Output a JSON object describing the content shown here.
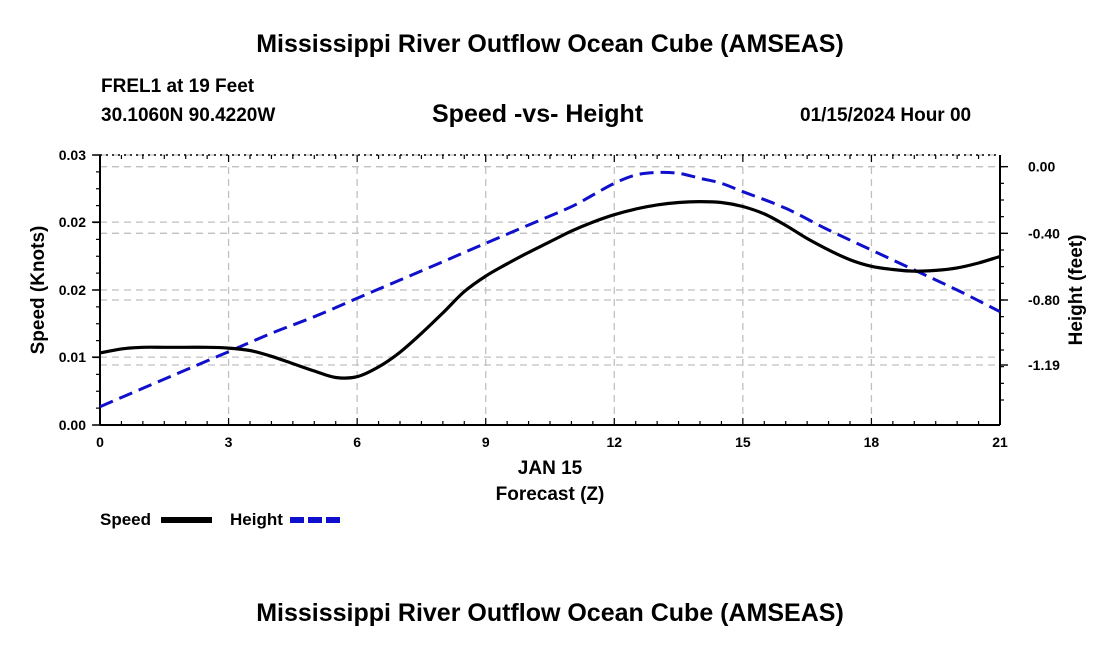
{
  "header": {
    "main_title": "Mississippi River Outflow Ocean Cube (AMSEAS)",
    "station": "FREL1 at 19 Feet",
    "coordinates": "30.1060N  90.4220W",
    "subtitle": "Speed -vs- Height",
    "datetime": "01/15/2024 Hour 00"
  },
  "footer": {
    "repeat_title": "Mississippi River Outflow Ocean Cube (AMSEAS)"
  },
  "colors": {
    "speed": "#000000",
    "height": "#1010cc",
    "grid": "#c0c0c0"
  },
  "chart_data": {
    "type": "line",
    "title": "Speed -vs- Height",
    "xlabel": "Forecast (Z)",
    "x_date_label": "JAN 15",
    "ylabel_left": "Speed (Knots)",
    "ylabel_right": "Height (feet)",
    "xlim": [
      0,
      21
    ],
    "ylim_left": [
      0,
      0.033
    ],
    "ylim_right": [
      -1.55,
      0.07
    ],
    "x_ticks": [
      0,
      3,
      6,
      9,
      12,
      15,
      18,
      21
    ],
    "x_tick_labels": [
      "0",
      "3",
      "6",
      "9",
      "12",
      "15",
      "18",
      "21"
    ],
    "left_ticks": [
      0,
      0.01,
      0.02,
      0.03
    ],
    "left_tick_labels": [
      "0.00",
      "0.01",
      "0.02",
      "0.02",
      "0.03"
    ],
    "left_tick_values": [
      0,
      0.0083,
      0.0165,
      0.0248,
      0.033
    ],
    "right_tick_values": [
      0,
      -0.4,
      -0.8,
      -1.19
    ],
    "right_tick_labels": [
      "0.00",
      "-0.40",
      "-0.80",
      "-1.19"
    ],
    "grid": true,
    "legend": "bottom-left",
    "series": [
      {
        "name": "Speed",
        "axis": "left",
        "style": "solid",
        "x": [
          0,
          0.5,
          1,
          1.5,
          2,
          2.5,
          3,
          3.5,
          4,
          4.5,
          5,
          5.5,
          6,
          6.5,
          7,
          7.5,
          8,
          8.5,
          9,
          9.5,
          10,
          10.5,
          11,
          11.5,
          12,
          12.5,
          13,
          13.5,
          14,
          14.5,
          15,
          15.5,
          16,
          16.5,
          17,
          17.5,
          18,
          18.5,
          19,
          19.5,
          20,
          20.5,
          21
        ],
        "values": [
          0.0088,
          0.0093,
          0.0095,
          0.0095,
          0.0095,
          0.0095,
          0.0094,
          0.0091,
          0.0084,
          0.0075,
          0.0066,
          0.0058,
          0.0059,
          0.0071,
          0.0089,
          0.0112,
          0.0137,
          0.0163,
          0.0182,
          0.0197,
          0.0211,
          0.0224,
          0.0237,
          0.0248,
          0.0257,
          0.0264,
          0.0269,
          0.0272,
          0.0273,
          0.0272,
          0.0267,
          0.0258,
          0.0244,
          0.0228,
          0.0214,
          0.0202,
          0.0194,
          0.019,
          0.0188,
          0.0189,
          0.0192,
          0.0198,
          0.0206
        ]
      },
      {
        "name": "Height",
        "axis": "right",
        "style": "dashed",
        "x": [
          0,
          1,
          2,
          3,
          4,
          5,
          6,
          7,
          8,
          9,
          10,
          11,
          11.5,
          12,
          12.5,
          13,
          13.5,
          14,
          14.5,
          15,
          16,
          17,
          18,
          19,
          20,
          21
        ],
        "values": [
          -1.44,
          -1.33,
          -1.22,
          -1.11,
          -1.0,
          -0.9,
          -0.79,
          -0.68,
          -0.57,
          -0.46,
          -0.35,
          -0.24,
          -0.17,
          -0.1,
          -0.05,
          -0.035,
          -0.04,
          -0.07,
          -0.1,
          -0.15,
          -0.25,
          -0.38,
          -0.5,
          -0.62,
          -0.74,
          -0.87
        ]
      }
    ]
  }
}
